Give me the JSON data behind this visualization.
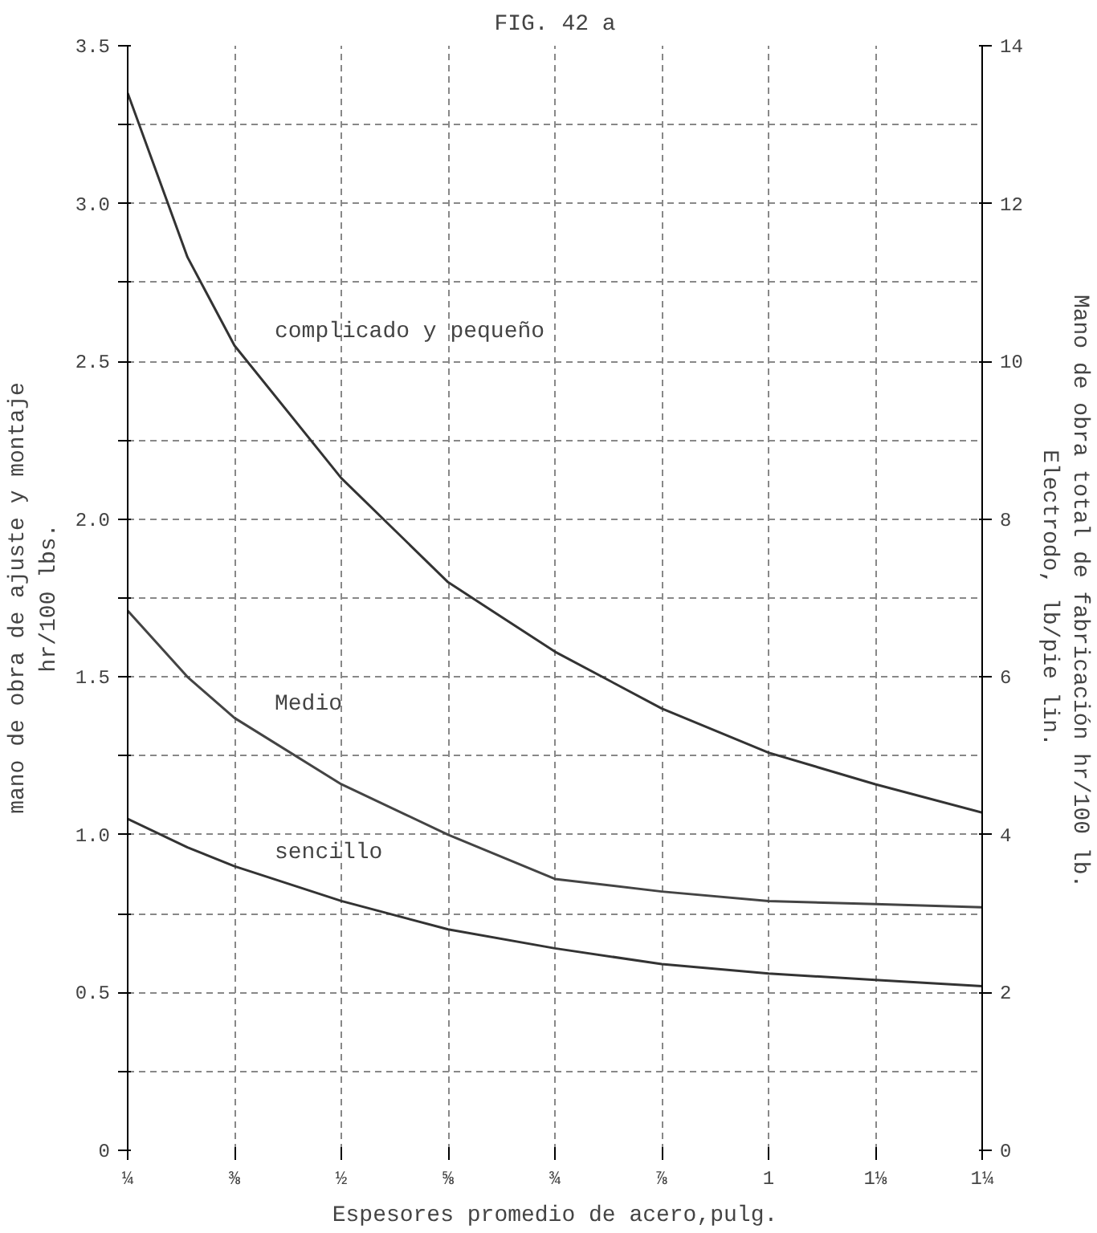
{
  "chart_data": {
    "type": "line",
    "title": "FIG. 42 a",
    "xlabel": "Espesores promedio de acero,pulg.",
    "ylabel": "mano de obra de ajuste y montaje\nhr/100 lbs.",
    "y2label": "Mano de obra total de  fabricación hr/100 lb.\nElectrodo, lb/pie lin.",
    "x": [
      0.25,
      0.32,
      0.375,
      0.5,
      0.625,
      0.75,
      0.875,
      1.0,
      1.125,
      1.25
    ],
    "series": [
      {
        "name": "complicado y pequeño",
        "color": "#333333",
        "values": [
          3.35,
          2.83,
          2.55,
          2.13,
          1.8,
          1.58,
          1.4,
          1.26,
          1.16,
          1.07
        ]
      },
      {
        "name": "Medio",
        "color": "#444444",
        "values": [
          1.71,
          1.5,
          1.37,
          1.16,
          1.0,
          0.86,
          0.82,
          0.79,
          0.78,
          0.77
        ]
      },
      {
        "name": "sencillo",
        "color": "#333333",
        "values": [
          1.05,
          0.96,
          0.9,
          0.79,
          0.7,
          0.64,
          0.59,
          0.56,
          0.54,
          0.52
        ]
      }
    ],
    "xlim": [
      0.25,
      1.25
    ],
    "xticks": [
      {
        "value": 0.25,
        "label": "¼"
      },
      {
        "value": 0.375,
        "label": "⅜"
      },
      {
        "value": 0.5,
        "label": "½"
      },
      {
        "value": 0.625,
        "label": "⅝"
      },
      {
        "value": 0.75,
        "label": "¾"
      },
      {
        "value": 0.875,
        "label": "⅞"
      },
      1,
      {
        "value": 1.125,
        "label": "1⅛"
      },
      {
        "value": 1.25,
        "label": "1¼"
      }
    ],
    "ylim": [
      0,
      3.5
    ],
    "yticks": [
      0,
      {
        "value": 0.25,
        "label": null
      },
      {
        "value": 0.5,
        "label": "0.5"
      },
      {
        "value": 0.75,
        "label": null
      },
      {
        "value": 1.0,
        "label": "1.0"
      },
      {
        "value": 1.25,
        "label": null
      },
      {
        "value": 1.5,
        "label": "1.5"
      },
      {
        "value": 1.75,
        "label": null
      },
      {
        "value": 2.0,
        "label": "2.0"
      },
      {
        "value": 2.25,
        "label": null
      },
      {
        "value": 2.5,
        "label": "2.5"
      },
      {
        "value": 2.75,
        "label": null
      },
      {
        "value": 3.0,
        "label": "3.0"
      },
      {
        "value": 3.25,
        "label": null
      },
      {
        "value": 3.5,
        "label": "3.5"
      }
    ],
    "y2lim": [
      0,
      14
    ],
    "y2ticks": [
      0,
      2,
      4,
      6,
      8,
      10,
      12,
      14
    ],
    "grid": true,
    "marker": "none",
    "line_style": "solid"
  }
}
